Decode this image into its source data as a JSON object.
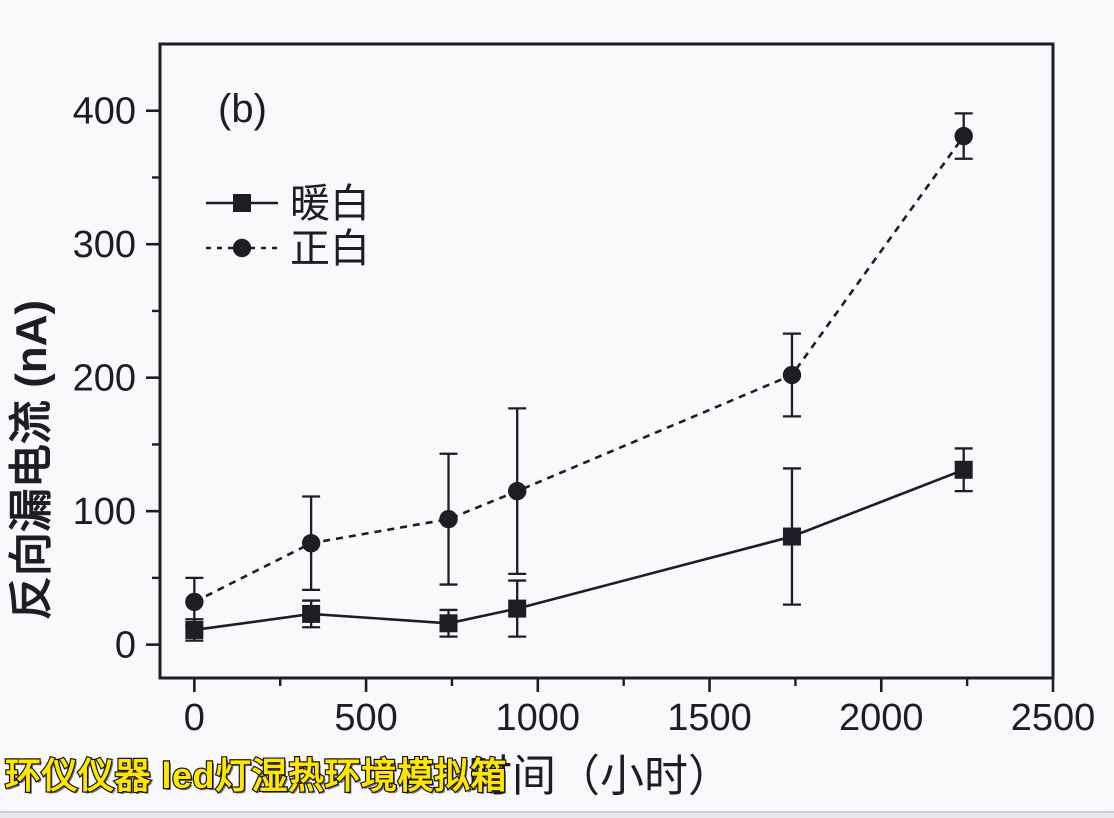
{
  "page": {
    "background": "#f6f6f8"
  },
  "watermark": {
    "text": "环仪仪器 led灯湿热环境模拟箱",
    "text_color": "#ffe600",
    "outline_color": "#141414"
  },
  "chart_data": {
    "type": "line",
    "annotation": "(b)",
    "xlabel": "时间（小时）",
    "ylabel": "反向漏电流 (nA)",
    "xlim": [
      -100,
      2500
    ],
    "ylim": [
      -25,
      450
    ],
    "x_major_ticks": [
      0,
      500,
      1000,
      1500,
      2000,
      2500
    ],
    "x_minor_step": 250,
    "y_major_ticks": [
      0,
      100,
      200,
      300,
      400
    ],
    "y_minor_step": 50,
    "grid": false,
    "legend_position": "upper-left-inside",
    "axis_color": "#1d1d26",
    "x": [
      0,
      340,
      740,
      940,
      1740,
      2240
    ],
    "series": [
      {
        "name": "暖白",
        "marker": "square",
        "line_style": "solid",
        "color": "#1d1d26",
        "values": [
          11,
          23,
          16,
          27,
          81,
          131
        ],
        "errors": [
          8,
          10,
          10,
          21,
          51,
          16
        ]
      },
      {
        "name": "正白",
        "marker": "circle",
        "line_style": "dashed",
        "color": "#1d1d26",
        "values": [
          32,
          76,
          94,
          115,
          202,
          381
        ],
        "errors": [
          18,
          35,
          49,
          62,
          31,
          17
        ]
      }
    ]
  }
}
